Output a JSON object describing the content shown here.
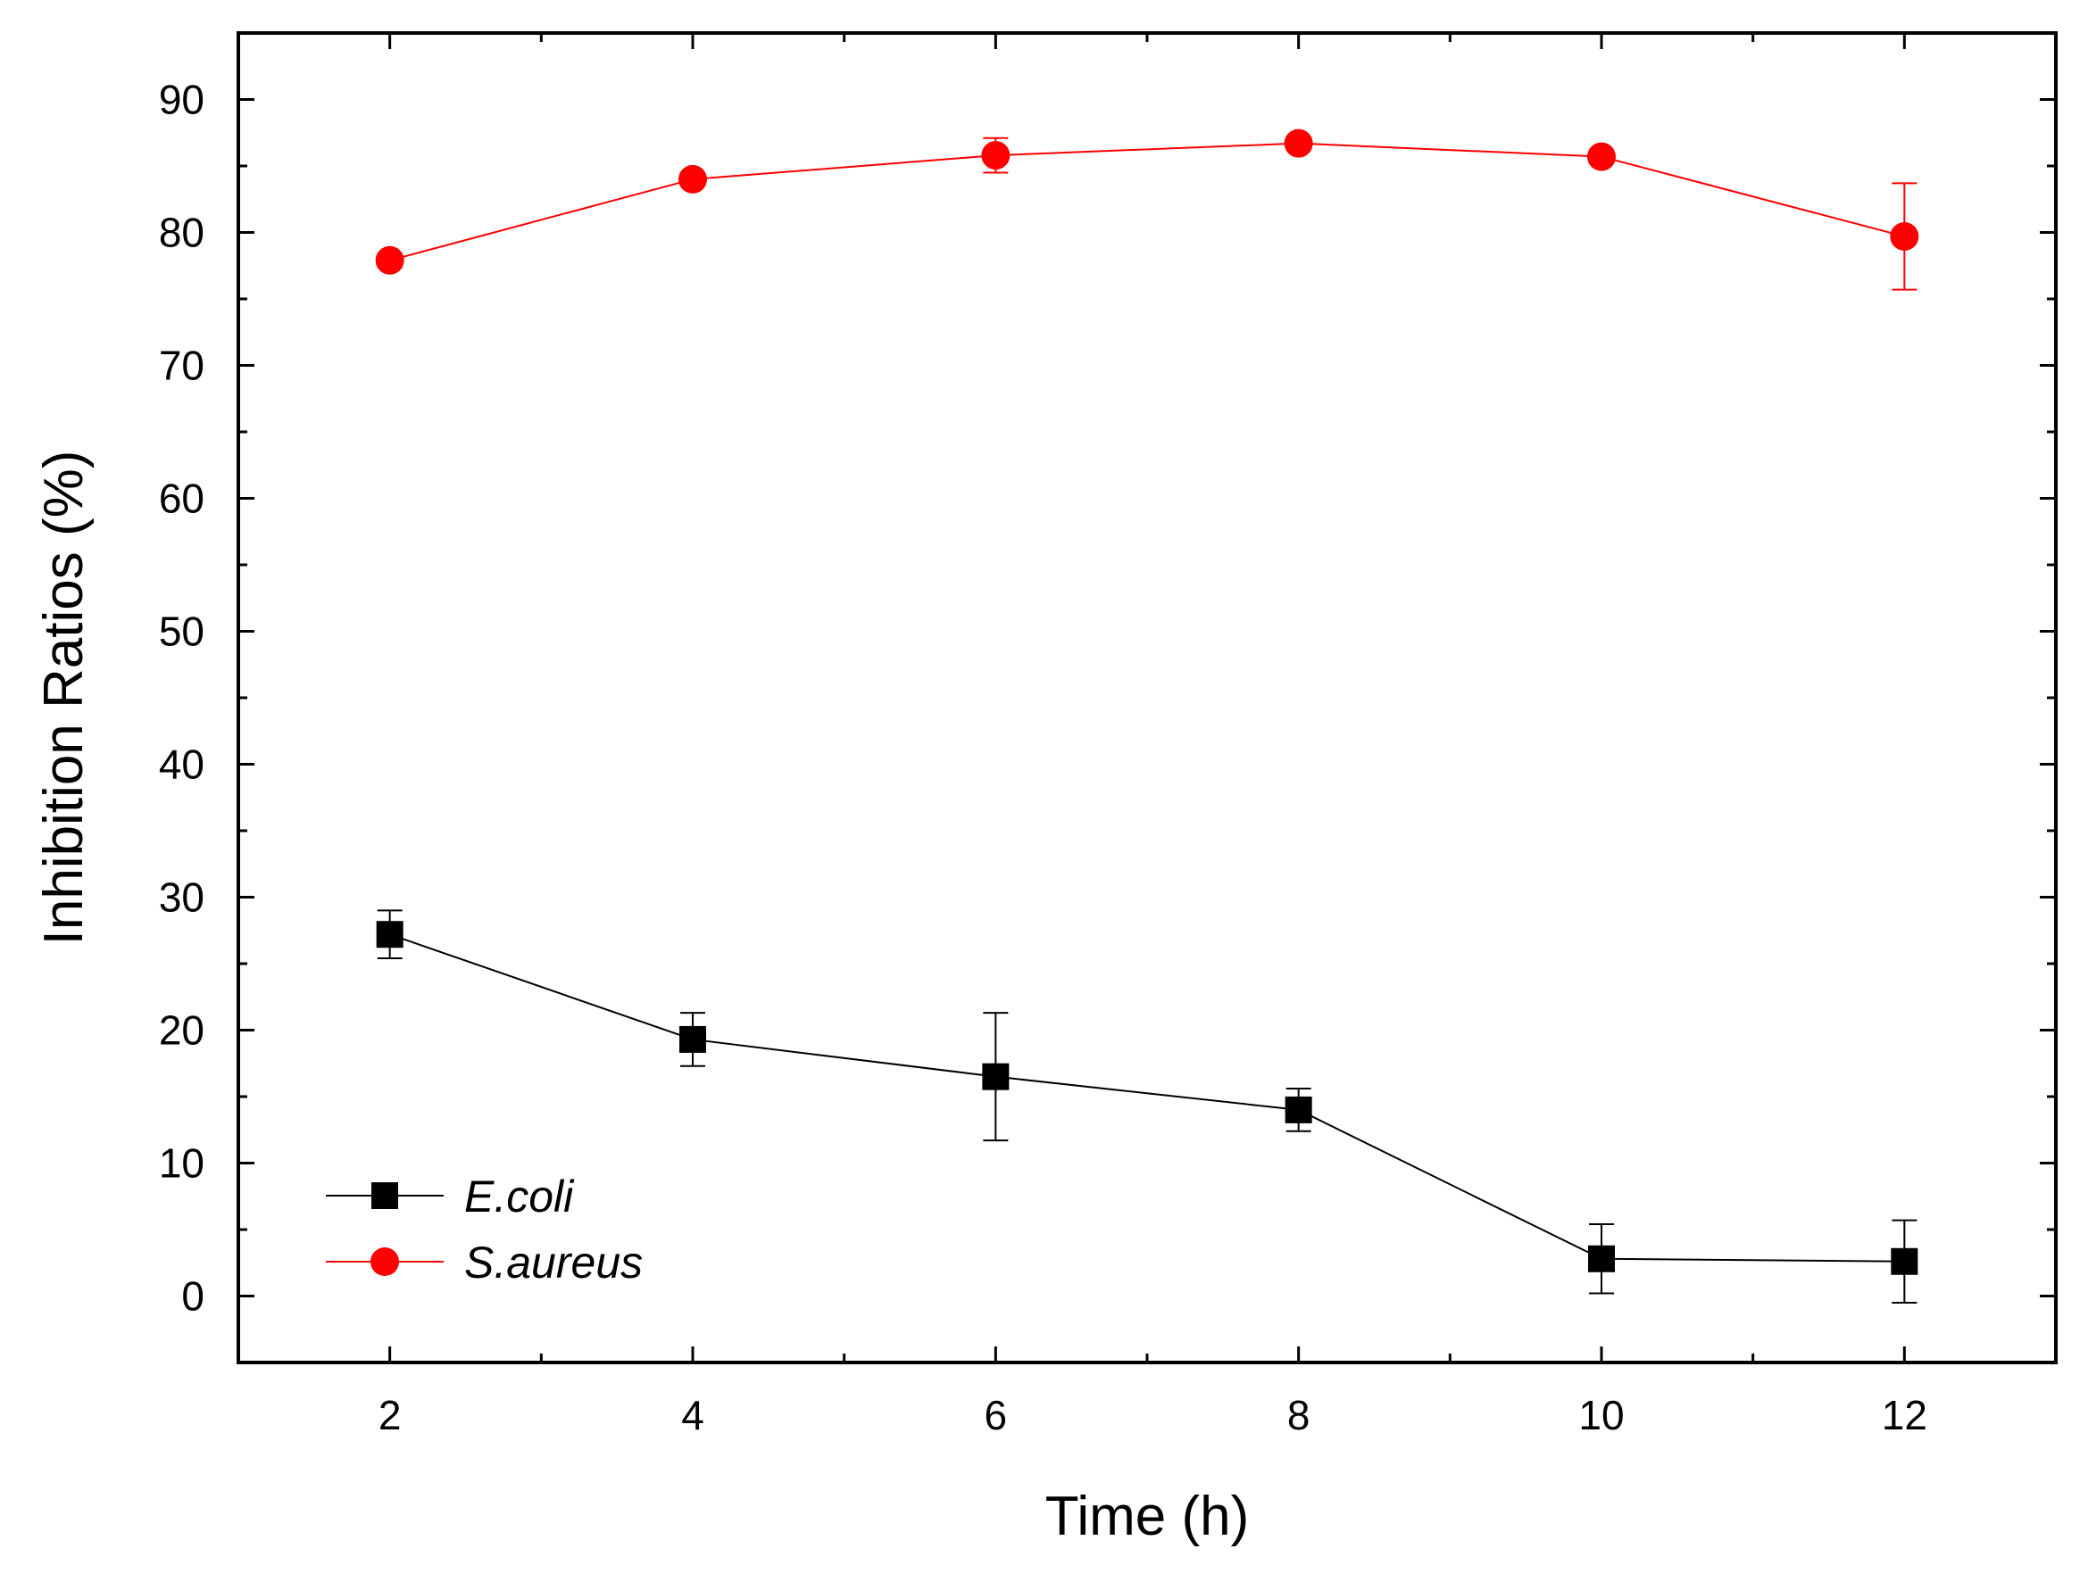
{
  "chart_data": {
    "type": "line",
    "title": "",
    "xlabel": "Time (h)",
    "ylabel": "Inhibition Ratios (%)",
    "xlim": [
      1,
      13
    ],
    "ylim": [
      -5,
      95
    ],
    "x": [
      2,
      4,
      6,
      8,
      10,
      12
    ],
    "xticks": [
      2,
      4,
      6,
      8,
      10,
      12
    ],
    "xtick_labels": [
      "2",
      "4",
      "6",
      "8",
      "10",
      "12"
    ],
    "yticks": [
      0,
      10,
      20,
      30,
      40,
      50,
      60,
      70,
      80,
      90
    ],
    "ytick_labels": [
      "0",
      "10",
      "20",
      "30",
      "40",
      "50",
      "60",
      "70",
      "80",
      "90"
    ],
    "grid": false,
    "legend_position": "bottom-left",
    "series": [
      {
        "name": "E.coli",
        "color": "#000000",
        "marker": "square",
        "values": [
          27.2,
          19.3,
          16.5,
          14.0,
          2.8,
          2.6
        ],
        "errors": [
          1.8,
          2.0,
          4.8,
          1.6,
          2.6,
          3.1
        ]
      },
      {
        "name": "S.aureus",
        "color": "#ff0000",
        "marker": "circle",
        "values": [
          77.9,
          84.0,
          85.8,
          86.7,
          85.7,
          79.7
        ],
        "errors": [
          0.5,
          0.5,
          1.3,
          0.5,
          0.5,
          4.0
        ]
      }
    ]
  }
}
